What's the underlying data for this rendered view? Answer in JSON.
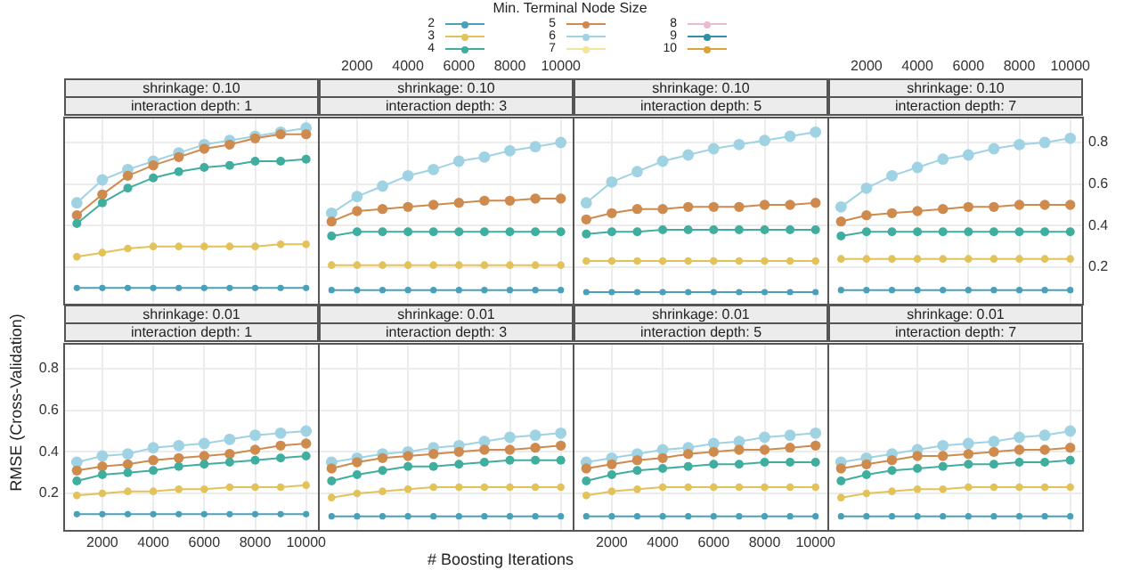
{
  "chart_data": [
    {
      "type": "line",
      "title": "shrinkage: 0.10",
      "subtitle": "interaction depth: 1",
      "legend_title": "Min. Terminal Node Size",
      "legend": "top",
      "tick_labels": false,
      "grid": true,
      "marker": "circle",
      "x": [
        1000,
        2000,
        3000,
        4000,
        5000,
        6000,
        7000,
        8000,
        9000,
        10000
      ],
      "xlim": [
        500,
        10500
      ],
      "xticks": [
        2000,
        4000,
        6000,
        8000,
        10000
      ],
      "ylim": [
        0.02,
        0.92
      ],
      "yticks": [
        0.2,
        0.4,
        0.6,
        0.8
      ],
      "series": [
        {
          "name": "2",
          "color": "#4aa0b8",
          "values": [
            0.1,
            0.1,
            0.1,
            0.1,
            0.1,
            0.1,
            0.1,
            0.1,
            0.1,
            0.1
          ]
        },
        {
          "name": "3",
          "color": "#e3c25a",
          "values": [
            0.25,
            0.27,
            0.29,
            0.3,
            0.3,
            0.3,
            0.3,
            0.3,
            0.31,
            0.31
          ]
        },
        {
          "name": "4",
          "color": "#3fae9e",
          "values": [
            0.41,
            0.51,
            0.58,
            0.63,
            0.66,
            0.68,
            0.69,
            0.71,
            0.71,
            0.72
          ]
        },
        {
          "name": "5",
          "color": "#cf8a4e",
          "values": [
            0.45,
            0.55,
            0.64,
            0.69,
            0.73,
            0.77,
            0.79,
            0.82,
            0.84,
            0.84
          ]
        },
        {
          "name": "6",
          "color": "#9fd3e3",
          "values": [
            0.51,
            0.62,
            0.67,
            0.71,
            0.75,
            0.79,
            0.81,
            0.83,
            0.85,
            0.87
          ]
        },
        {
          "name": "7",
          "color": "#f2e69a",
          "values": [
            null,
            null,
            null,
            null,
            null,
            null,
            null,
            null,
            null,
            null
          ]
        },
        {
          "name": "8",
          "color": "#e9bcd3",
          "values": [
            null,
            null,
            null,
            null,
            null,
            null,
            null,
            null,
            null,
            null
          ]
        },
        {
          "name": "9",
          "color": "#2f8fa8",
          "values": [
            null,
            null,
            null,
            null,
            null,
            null,
            null,
            null,
            null,
            null
          ]
        },
        {
          "name": "10",
          "color": "#d9a53a",
          "values": [
            null,
            null,
            null,
            null,
            null,
            null,
            null,
            null,
            null,
            null
          ]
        }
      ]
    },
    {
      "type": "line",
      "title": "shrinkage: 0.10",
      "subtitle": "interaction depth: 3",
      "tick_labels": "x",
      "grid": true,
      "marker": "circle",
      "x": [
        1000,
        2000,
        3000,
        4000,
        5000,
        6000,
        7000,
        8000,
        9000,
        10000
      ],
      "xlim": [
        500,
        10500
      ],
      "xticks": [
        2000,
        4000,
        6000,
        8000,
        10000
      ],
      "ylim": [
        0.02,
        0.92
      ],
      "yticks": [
        0.2,
        0.4,
        0.6,
        0.8
      ],
      "series": [
        {
          "color": "#4aa0b8",
          "values": [
            0.09,
            0.09,
            0.09,
            0.09,
            0.09,
            0.09,
            0.09,
            0.09,
            0.09,
            0.09
          ]
        },
        {
          "color": "#e3c25a",
          "values": [
            0.21,
            0.21,
            0.21,
            0.21,
            0.21,
            0.21,
            0.21,
            0.21,
            0.21,
            0.21
          ]
        },
        {
          "color": "#3fae9e",
          "values": [
            0.35,
            0.37,
            0.37,
            0.37,
            0.37,
            0.37,
            0.37,
            0.37,
            0.37,
            0.37
          ]
        },
        {
          "color": "#cf8a4e",
          "values": [
            0.42,
            0.47,
            0.48,
            0.49,
            0.5,
            0.51,
            0.52,
            0.52,
            0.53,
            0.53
          ]
        },
        {
          "color": "#9fd3e3",
          "values": [
            0.46,
            0.54,
            0.59,
            0.64,
            0.67,
            0.71,
            0.73,
            0.76,
            0.78,
            0.8
          ]
        },
        {
          "color": "#f2e69a",
          "values": [
            null,
            null,
            null,
            null,
            null,
            null,
            null,
            null,
            null,
            null
          ]
        },
        {
          "color": "#e9bcd3",
          "values": [
            null,
            null,
            null,
            null,
            null,
            null,
            null,
            null,
            null,
            null
          ]
        },
        {
          "color": "#2f8fa8",
          "values": [
            null,
            null,
            null,
            null,
            null,
            null,
            null,
            null,
            null,
            null
          ]
        },
        {
          "color": "#d9a53a",
          "values": [
            null,
            null,
            null,
            null,
            null,
            null,
            null,
            null,
            null,
            null
          ]
        }
      ]
    },
    {
      "type": "line",
      "title": "shrinkage: 0.10",
      "subtitle": "interaction depth: 5",
      "tick_labels": false,
      "grid": true,
      "marker": "circle",
      "x": [
        1000,
        2000,
        3000,
        4000,
        5000,
        6000,
        7000,
        8000,
        9000,
        10000
      ],
      "xlim": [
        500,
        10500
      ],
      "xticks": [
        2000,
        4000,
        6000,
        8000,
        10000
      ],
      "ylim": [
        0.02,
        0.92
      ],
      "yticks": [
        0.2,
        0.4,
        0.6,
        0.8
      ],
      "series": [
        {
          "color": "#4aa0b8",
          "values": [
            0.08,
            0.08,
            0.08,
            0.08,
            0.08,
            0.08,
            0.08,
            0.08,
            0.08,
            0.08
          ]
        },
        {
          "color": "#e3c25a",
          "values": [
            0.23,
            0.23,
            0.23,
            0.23,
            0.23,
            0.23,
            0.23,
            0.23,
            0.23,
            0.23
          ]
        },
        {
          "color": "#3fae9e",
          "values": [
            0.36,
            0.37,
            0.37,
            0.38,
            0.38,
            0.38,
            0.38,
            0.38,
            0.38,
            0.38
          ]
        },
        {
          "color": "#cf8a4e",
          "values": [
            0.43,
            0.46,
            0.48,
            0.48,
            0.49,
            0.49,
            0.49,
            0.5,
            0.5,
            0.51
          ]
        },
        {
          "color": "#9fd3e3",
          "values": [
            0.51,
            0.61,
            0.66,
            0.71,
            0.74,
            0.77,
            0.79,
            0.81,
            0.83,
            0.85
          ]
        },
        {
          "color": "#f2e69a",
          "values": [
            null,
            null,
            null,
            null,
            null,
            null,
            null,
            null,
            null,
            null
          ]
        },
        {
          "color": "#e9bcd3",
          "values": [
            null,
            null,
            null,
            null,
            null,
            null,
            null,
            null,
            null,
            null
          ]
        },
        {
          "color": "#2f8fa8",
          "values": [
            null,
            null,
            null,
            null,
            null,
            null,
            null,
            null,
            null,
            null
          ]
        },
        {
          "color": "#d9a53a",
          "values": [
            null,
            null,
            null,
            null,
            null,
            null,
            null,
            null,
            null,
            null
          ]
        }
      ]
    },
    {
      "type": "line",
      "title": "shrinkage: 0.10",
      "subtitle": "interaction depth: 7",
      "grid": true,
      "marker": "circle",
      "x": [
        1000,
        2000,
        3000,
        4000,
        5000,
        6000,
        7000,
        8000,
        9000,
        10000
      ],
      "xlim": [
        500,
        10500
      ],
      "xticks": [
        2000,
        4000,
        6000,
        8000,
        10000
      ],
      "ylim": [
        0.02,
        0.92
      ],
      "yticks": [
        0.2,
        0.4,
        0.6,
        0.8
      ],
      "series": [
        {
          "color": "#4aa0b8",
          "values": [
            0.09,
            0.09,
            0.09,
            0.09,
            0.09,
            0.09,
            0.09,
            0.09,
            0.09,
            0.09
          ]
        },
        {
          "color": "#e3c25a",
          "values": [
            0.24,
            0.24,
            0.24,
            0.24,
            0.24,
            0.24,
            0.24,
            0.24,
            0.24,
            0.24
          ]
        },
        {
          "color": "#3fae9e",
          "values": [
            0.35,
            0.37,
            0.37,
            0.37,
            0.37,
            0.37,
            0.37,
            0.37,
            0.37,
            0.37
          ]
        },
        {
          "color": "#cf8a4e",
          "values": [
            0.42,
            0.45,
            0.46,
            0.47,
            0.48,
            0.49,
            0.49,
            0.5,
            0.5,
            0.5
          ]
        },
        {
          "color": "#9fd3e3",
          "values": [
            0.49,
            0.58,
            0.64,
            0.68,
            0.72,
            0.74,
            0.77,
            0.79,
            0.8,
            0.82
          ]
        },
        {
          "color": "#f2e69a",
          "values": [
            null,
            null,
            null,
            null,
            null,
            null,
            null,
            null,
            null,
            null
          ]
        },
        {
          "color": "#e9bcd3",
          "values": [
            null,
            null,
            null,
            null,
            null,
            null,
            null,
            null,
            null,
            null
          ]
        },
        {
          "color": "#2f8fa8",
          "values": [
            null,
            null,
            null,
            null,
            null,
            null,
            null,
            null,
            null,
            null
          ]
        },
        {
          "color": "#d9a53a",
          "values": [
            null,
            null,
            null,
            null,
            null,
            null,
            null,
            null,
            null,
            null
          ]
        }
      ]
    },
    {
      "type": "line",
      "title": "shrinkage: 0.01",
      "subtitle": "interaction depth: 1",
      "ylabel": "RMSE (Cross-Validation)",
      "grid": true,
      "marker": "circle",
      "x": [
        1000,
        2000,
        3000,
        4000,
        5000,
        6000,
        7000,
        8000,
        9000,
        10000
      ],
      "xlim": [
        500,
        10500
      ],
      "xticks": [
        2000,
        4000,
        6000,
        8000,
        10000
      ],
      "ylim": [
        0.02,
        0.92
      ],
      "yticks": [
        0.2,
        0.4,
        0.6,
        0.8
      ],
      "series": [
        {
          "color": "#4aa0b8",
          "values": [
            0.1,
            0.1,
            0.1,
            0.1,
            0.1,
            0.1,
            0.1,
            0.1,
            0.1,
            0.1
          ]
        },
        {
          "color": "#e3c25a",
          "values": [
            0.19,
            0.2,
            0.21,
            0.21,
            0.22,
            0.22,
            0.23,
            0.23,
            0.23,
            0.24
          ]
        },
        {
          "color": "#3fae9e",
          "values": [
            0.26,
            0.29,
            0.3,
            0.31,
            0.33,
            0.34,
            0.35,
            0.36,
            0.37,
            0.38
          ]
        },
        {
          "color": "#cf8a4e",
          "values": [
            0.31,
            0.33,
            0.34,
            0.36,
            0.37,
            0.38,
            0.39,
            0.41,
            0.43,
            0.44
          ]
        },
        {
          "color": "#9fd3e3",
          "values": [
            0.35,
            0.38,
            0.39,
            0.42,
            0.43,
            0.44,
            0.46,
            0.48,
            0.49,
            0.5
          ]
        },
        {
          "color": "#f2e69a",
          "values": [
            null,
            null,
            null,
            null,
            null,
            null,
            null,
            null,
            null,
            null
          ]
        },
        {
          "color": "#e9bcd3",
          "values": [
            null,
            null,
            null,
            null,
            null,
            null,
            null,
            null,
            null,
            null
          ]
        },
        {
          "color": "#2f8fa8",
          "values": [
            null,
            null,
            null,
            null,
            null,
            null,
            null,
            null,
            null,
            null
          ]
        },
        {
          "color": "#d9a53a",
          "values": [
            null,
            null,
            null,
            null,
            null,
            null,
            null,
            null,
            null,
            null
          ]
        }
      ]
    },
    {
      "type": "line",
      "title": "shrinkage: 0.01",
      "subtitle": "interaction depth: 3",
      "xlabel": "# Boosting Iterations",
      "tick_labels": false,
      "grid": true,
      "marker": "circle",
      "x": [
        1000,
        2000,
        3000,
        4000,
        5000,
        6000,
        7000,
        8000,
        9000,
        10000
      ],
      "xlim": [
        500,
        10500
      ],
      "xticks": [
        2000,
        4000,
        6000,
        8000,
        10000
      ],
      "ylim": [
        0.02,
        0.92
      ],
      "yticks": [
        0.2,
        0.4,
        0.6,
        0.8
      ],
      "series": [
        {
          "color": "#4aa0b8",
          "values": [
            0.09,
            0.09,
            0.09,
            0.09,
            0.09,
            0.09,
            0.09,
            0.09,
            0.09,
            0.09
          ]
        },
        {
          "color": "#e3c25a",
          "values": [
            0.18,
            0.2,
            0.21,
            0.22,
            0.23,
            0.23,
            0.23,
            0.23,
            0.23,
            0.23
          ]
        },
        {
          "color": "#3fae9e",
          "values": [
            0.26,
            0.29,
            0.31,
            0.33,
            0.33,
            0.34,
            0.35,
            0.36,
            0.36,
            0.36
          ]
        },
        {
          "color": "#cf8a4e",
          "values": [
            0.32,
            0.35,
            0.37,
            0.38,
            0.39,
            0.4,
            0.41,
            0.41,
            0.42,
            0.43
          ]
        },
        {
          "color": "#9fd3e3",
          "values": [
            0.35,
            0.37,
            0.39,
            0.4,
            0.42,
            0.43,
            0.45,
            0.47,
            0.48,
            0.49
          ]
        },
        {
          "color": "#f2e69a",
          "values": [
            null,
            null,
            null,
            null,
            null,
            null,
            null,
            null,
            null,
            null
          ]
        },
        {
          "color": "#e9bcd3",
          "values": [
            null,
            null,
            null,
            null,
            null,
            null,
            null,
            null,
            null,
            null
          ]
        },
        {
          "color": "#2f8fa8",
          "values": [
            null,
            null,
            null,
            null,
            null,
            null,
            null,
            null,
            null,
            null
          ]
        },
        {
          "color": "#d9a53a",
          "values": [
            null,
            null,
            null,
            null,
            null,
            null,
            null,
            null,
            null,
            null
          ]
        }
      ]
    },
    {
      "type": "line",
      "title": "shrinkage: 0.01",
      "subtitle": "interaction depth: 5",
      "tick_labels": "x",
      "grid": true,
      "marker": "circle",
      "x": [
        1000,
        2000,
        3000,
        4000,
        5000,
        6000,
        7000,
        8000,
        9000,
        10000
      ],
      "xlim": [
        500,
        10500
      ],
      "xticks": [
        2000,
        4000,
        6000,
        8000,
        10000
      ],
      "ylim": [
        0.02,
        0.92
      ],
      "yticks": [
        0.2,
        0.4,
        0.6,
        0.8
      ],
      "series": [
        {
          "color": "#4aa0b8",
          "values": [
            0.09,
            0.09,
            0.09,
            0.09,
            0.09,
            0.09,
            0.09,
            0.09,
            0.09,
            0.09
          ]
        },
        {
          "color": "#e3c25a",
          "values": [
            0.19,
            0.21,
            0.22,
            0.23,
            0.23,
            0.23,
            0.23,
            0.23,
            0.23,
            0.23
          ]
        },
        {
          "color": "#3fae9e",
          "values": [
            0.26,
            0.29,
            0.31,
            0.32,
            0.33,
            0.34,
            0.34,
            0.35,
            0.35,
            0.35
          ]
        },
        {
          "color": "#cf8a4e",
          "values": [
            0.32,
            0.34,
            0.36,
            0.37,
            0.39,
            0.4,
            0.41,
            0.41,
            0.42,
            0.43
          ]
        },
        {
          "color": "#9fd3e3",
          "values": [
            0.35,
            0.37,
            0.39,
            0.41,
            0.42,
            0.44,
            0.45,
            0.47,
            0.48,
            0.49
          ]
        },
        {
          "color": "#f2e69a",
          "values": [
            null,
            null,
            null,
            null,
            null,
            null,
            null,
            null,
            null,
            null
          ]
        },
        {
          "color": "#e9bcd3",
          "values": [
            null,
            null,
            null,
            null,
            null,
            null,
            null,
            null,
            null,
            null
          ]
        },
        {
          "color": "#2f8fa8",
          "values": [
            null,
            null,
            null,
            null,
            null,
            null,
            null,
            null,
            null,
            null
          ]
        },
        {
          "color": "#d9a53a",
          "values": [
            null,
            null,
            null,
            null,
            null,
            null,
            null,
            null,
            null,
            null
          ]
        }
      ]
    },
    {
      "type": "line",
      "title": "shrinkage: 0.01",
      "subtitle": "interaction depth: 7",
      "tick_labels": false,
      "grid": true,
      "marker": "circle",
      "x": [
        1000,
        2000,
        3000,
        4000,
        5000,
        6000,
        7000,
        8000,
        9000,
        10000
      ],
      "xlim": [
        500,
        10500
      ],
      "xticks": [
        2000,
        4000,
        6000,
        8000,
        10000
      ],
      "ylim": [
        0.02,
        0.92
      ],
      "yticks": [
        0.2,
        0.4,
        0.6,
        0.8
      ],
      "series": [
        {
          "color": "#4aa0b8",
          "values": [
            0.09,
            0.09,
            0.09,
            0.09,
            0.09,
            0.09,
            0.09,
            0.09,
            0.09,
            0.09
          ]
        },
        {
          "color": "#e3c25a",
          "values": [
            0.18,
            0.2,
            0.21,
            0.22,
            0.22,
            0.23,
            0.23,
            0.23,
            0.23,
            0.23
          ]
        },
        {
          "color": "#3fae9e",
          "values": [
            0.26,
            0.29,
            0.31,
            0.32,
            0.33,
            0.34,
            0.34,
            0.35,
            0.35,
            0.36
          ]
        },
        {
          "color": "#cf8a4e",
          "values": [
            0.32,
            0.34,
            0.36,
            0.38,
            0.38,
            0.39,
            0.4,
            0.41,
            0.41,
            0.42
          ]
        },
        {
          "color": "#9fd3e3",
          "values": [
            0.35,
            0.37,
            0.39,
            0.41,
            0.43,
            0.44,
            0.45,
            0.47,
            0.48,
            0.5
          ]
        },
        {
          "color": "#f2e69a",
          "values": [
            null,
            null,
            null,
            null,
            null,
            null,
            null,
            null,
            null,
            null
          ]
        },
        {
          "color": "#e9bcd3",
          "values": [
            null,
            null,
            null,
            null,
            null,
            null,
            null,
            null,
            null,
            null
          ]
        },
        {
          "color": "#2f8fa8",
          "values": [
            null,
            null,
            null,
            null,
            null,
            null,
            null,
            null,
            null,
            null
          ]
        },
        {
          "color": "#d9a53a",
          "values": [
            null,
            null,
            null,
            null,
            null,
            null,
            null,
            null,
            null,
            null
          ]
        }
      ]
    }
  ]
}
